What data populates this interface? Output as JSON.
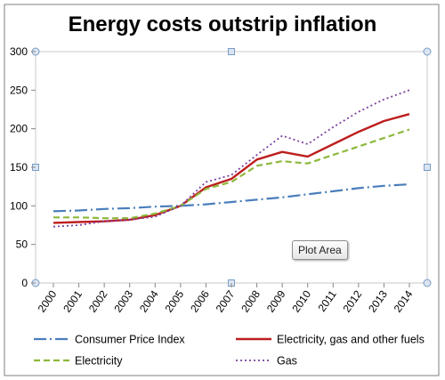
{
  "chart_data": {
    "type": "line",
    "title": "Energy costs outstrip inflation",
    "categories": [
      "2000",
      "2001",
      "2002",
      "2003",
      "2004",
      "2005",
      "2006",
      "2007",
      "2008",
      "2009",
      "2010",
      "2011",
      "2012",
      "2013",
      "2014"
    ],
    "ylim": [
      0,
      300
    ],
    "yticks": [
      0,
      50,
      100,
      150,
      200,
      250,
      300
    ],
    "grid": false,
    "legend_position": "bottom",
    "series": [
      {
        "name": "Consumer Price Index",
        "color": "#4a7ebb",
        "style": "dash-dot",
        "values": [
          93,
          94,
          96,
          97,
          99,
          100,
          102,
          105,
          108,
          111,
          115,
          119,
          123,
          126,
          128
        ]
      },
      {
        "name": "Electricity, gas and other fuels",
        "color": "#be1e1e",
        "style": "solid",
        "values": [
          78,
          79,
          80,
          82,
          88,
          100,
          124,
          135,
          160,
          170,
          164,
          180,
          196,
          210,
          219
        ]
      },
      {
        "name": "Electricity",
        "color": "#8db83b",
        "style": "dashed",
        "values": [
          85,
          85,
          84,
          84,
          90,
          100,
          122,
          131,
          152,
          158,
          155,
          166,
          177,
          188,
          199
        ]
      },
      {
        "name": "Gas",
        "color": "#7b3f9e",
        "style": "dotted",
        "values": [
          73,
          75,
          80,
          82,
          86,
          100,
          131,
          140,
          166,
          191,
          180,
          202,
          222,
          238,
          250
        ]
      }
    ]
  },
  "plot_area_tooltip": "Plot Area"
}
